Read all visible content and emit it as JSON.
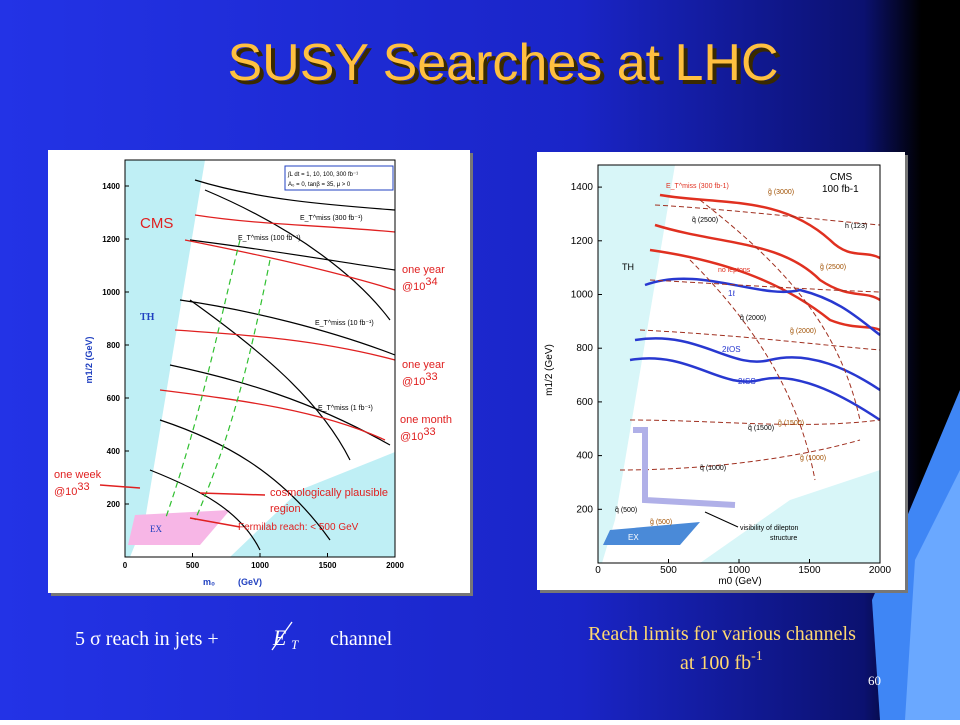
{
  "title": "SUSY Searches at LHC",
  "left_plot": {
    "x_axis_label": "m₀",
    "x_axis_unit": "(GeV)",
    "y_axis_label": "m1/2 (GeV)",
    "x_ticks": [
      "0",
      "500",
      "1000",
      "1500",
      "2000"
    ],
    "y_ticks": [
      "200",
      "400",
      "600",
      "800",
      "1000",
      "1200",
      "1400"
    ],
    "legend_line1": "∫L dt = 1, 10, 100, 300 fb⁻¹",
    "legend_line2": "A₀ = 0, tanβ = 35, μ > 0",
    "cms": "CMS",
    "th": "TH",
    "ex": "EX",
    "one_year_34": [
      "one year",
      "@10",
      "34"
    ],
    "one_year_33": [
      "one year",
      "@10",
      "33"
    ],
    "one_month_33": [
      "one month",
      "@10",
      "33"
    ],
    "one_week_33": [
      "one week",
      "@10",
      "33"
    ],
    "cosmo": [
      "cosmologically plausible",
      "region"
    ],
    "fermilab": "Fermilab reach: < 500 GeV",
    "met_labels": [
      "E_T^miss (300 fb⁻¹)",
      "E_T^miss (100 fb⁻¹)",
      "E_T^miss (10 fb⁻¹)",
      "E_T^miss (1 fb⁻¹)"
    ]
  },
  "right_plot": {
    "x_axis_label": "m0 (GeV)",
    "y_axis_label": "m1/2 (GeV)",
    "x_ticks": [
      "0",
      "500",
      "1000",
      "1500",
      "2000"
    ],
    "y_ticks": [
      "200",
      "400",
      "600",
      "800",
      "1000",
      "1200",
      "1400"
    ],
    "cms": "CMS",
    "lumi": "100 fb-1",
    "th": "TH",
    "ex": "EX",
    "no_leptons": "no leptons",
    "one_lep": "1ℓ",
    "two_os": "2ℓOS",
    "two_ss": "2ℓSS",
    "higgs": "h (123)",
    "gluino_labels": [
      "g̃ (3000)",
      "g̃ (2500)",
      "g̃ (2000)",
      "g̃ (1500)",
      "g̃ (1000)",
      "g̃ (500)"
    ],
    "squark_labels": [
      "q̃ (2500)",
      "q̃ (2000)",
      "q̃ (1500)",
      "q̃ (1000)",
      "q̃ (500)"
    ],
    "met": "E_T^miss (300 fb-1)",
    "dilepton": [
      "visibility of dilepton",
      "structure"
    ]
  },
  "captions": {
    "left_before": "5 σ reach in jets +",
    "left_met": "E",
    "left_sub": "T",
    "left_after": "channel",
    "right_line1": "Reach limits for various channels",
    "right_line2": "at 100 fb",
    "right_sup": "-1"
  },
  "page_number": "60"
}
